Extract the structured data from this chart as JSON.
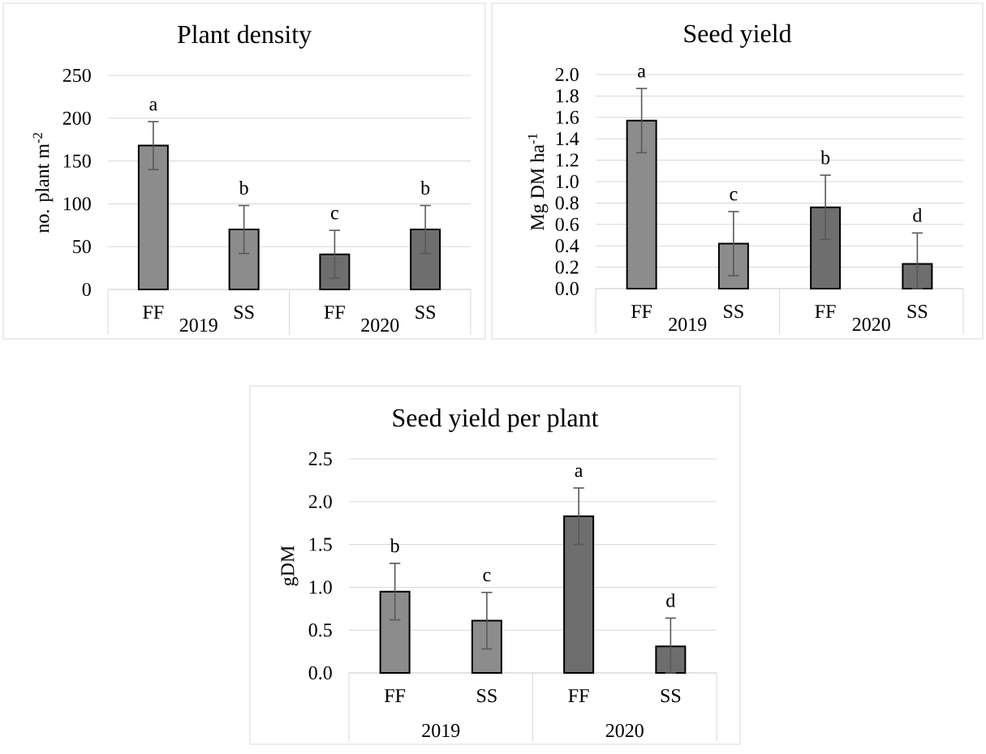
{
  "chart_data": [
    {
      "type": "bar",
      "title": "Plant density",
      "ylabel": "no. plant m$^{-2}$",
      "categories": [
        "FF",
        "SS",
        "FF",
        "SS"
      ],
      "series": [
        {
          "name": "2019",
          "color": "#8c8c8c",
          "values": [
            168,
            70,
            null,
            null
          ],
          "errors": [
            28,
            28,
            null,
            null
          ],
          "value_labels": [
            "a",
            "b",
            null,
            null
          ]
        },
        {
          "name": "2020",
          "color": "#6e6e6e",
          "values": [
            null,
            null,
            41,
            70
          ],
          "errors": [
            null,
            null,
            28,
            28
          ],
          "value_labels": [
            null,
            null,
            "c",
            "b"
          ]
        }
      ],
      "ylim": [
        0,
        250
      ],
      "yticks": [
        0,
        50,
        100,
        150,
        200,
        250
      ],
      "grid": "y"
    },
    {
      "type": "bar",
      "title": "Seed yield",
      "ylabel": "Mg DM ha$^{-1}$",
      "categories": [
        "FF",
        "SS",
        "FF",
        "SS"
      ],
      "series": [
        {
          "name": "2019",
          "color": "#8c8c8c",
          "values": [
            1.57,
            0.42,
            null,
            null
          ],
          "errors": [
            0.3,
            0.3,
            null,
            null
          ],
          "value_labels": [
            "a",
            "c",
            null,
            null
          ]
        },
        {
          "name": "2020",
          "color": "#6e6e6e",
          "values": [
            null,
            null,
            0.76,
            0.23
          ],
          "errors": [
            null,
            null,
            0.3,
            [
              0,
              0.52
            ]
          ],
          "value_labels": [
            null,
            null,
            "b",
            "d"
          ]
        }
      ],
      "ylim": [
        0,
        2
      ],
      "yticks": [
        {
          "value": 0,
          "label": "0.0"
        },
        {
          "value": 0.2,
          "label": "0.2"
        },
        {
          "value": 0.4,
          "label": "0.4"
        },
        {
          "value": 0.6,
          "label": "0.6"
        },
        {
          "value": 0.8,
          "label": "0.8"
        },
        {
          "value": 1,
          "label": "1.0"
        },
        {
          "value": 1.2,
          "label": "1.2"
        },
        {
          "value": 1.4,
          "label": "1.4"
        },
        {
          "value": 1.6,
          "label": "1.6"
        },
        {
          "value": 1.8,
          "label": "1.8"
        },
        {
          "value": 2,
          "label": "2.0"
        }
      ],
      "grid": "y"
    },
    {
      "type": "bar",
      "title": "Seed yield per plant",
      "ylabel": "gDM",
      "categories": [
        "FF",
        "SS",
        "FF",
        "SS"
      ],
      "series": [
        {
          "name": "2019",
          "color": "#8c8c8c",
          "values": [
            0.95,
            0.61,
            null,
            null
          ],
          "errors": [
            0.33,
            0.33,
            null,
            null
          ],
          "value_labels": [
            "b",
            "c",
            null,
            null
          ]
        },
        {
          "name": "2020",
          "color": "#6e6e6e",
          "values": [
            null,
            null,
            1.83,
            0.31
          ],
          "errors": [
            null,
            null,
            0.33,
            [
              0,
              0.64
            ]
          ],
          "value_labels": [
            null,
            null,
            "a",
            "d"
          ]
        }
      ],
      "ylim": [
        0,
        2.5
      ],
      "yticks": [
        {
          "value": 0,
          "label": "0.0"
        },
        {
          "value": 0.5,
          "label": "0.5"
        },
        {
          "value": 1,
          "label": "1.0"
        },
        {
          "value": 1.5,
          "label": "1.5"
        },
        {
          "value": 2,
          "label": "2.0"
        },
        {
          "value": 2.5,
          "label": "2.5"
        }
      ],
      "grid": "y"
    }
  ]
}
